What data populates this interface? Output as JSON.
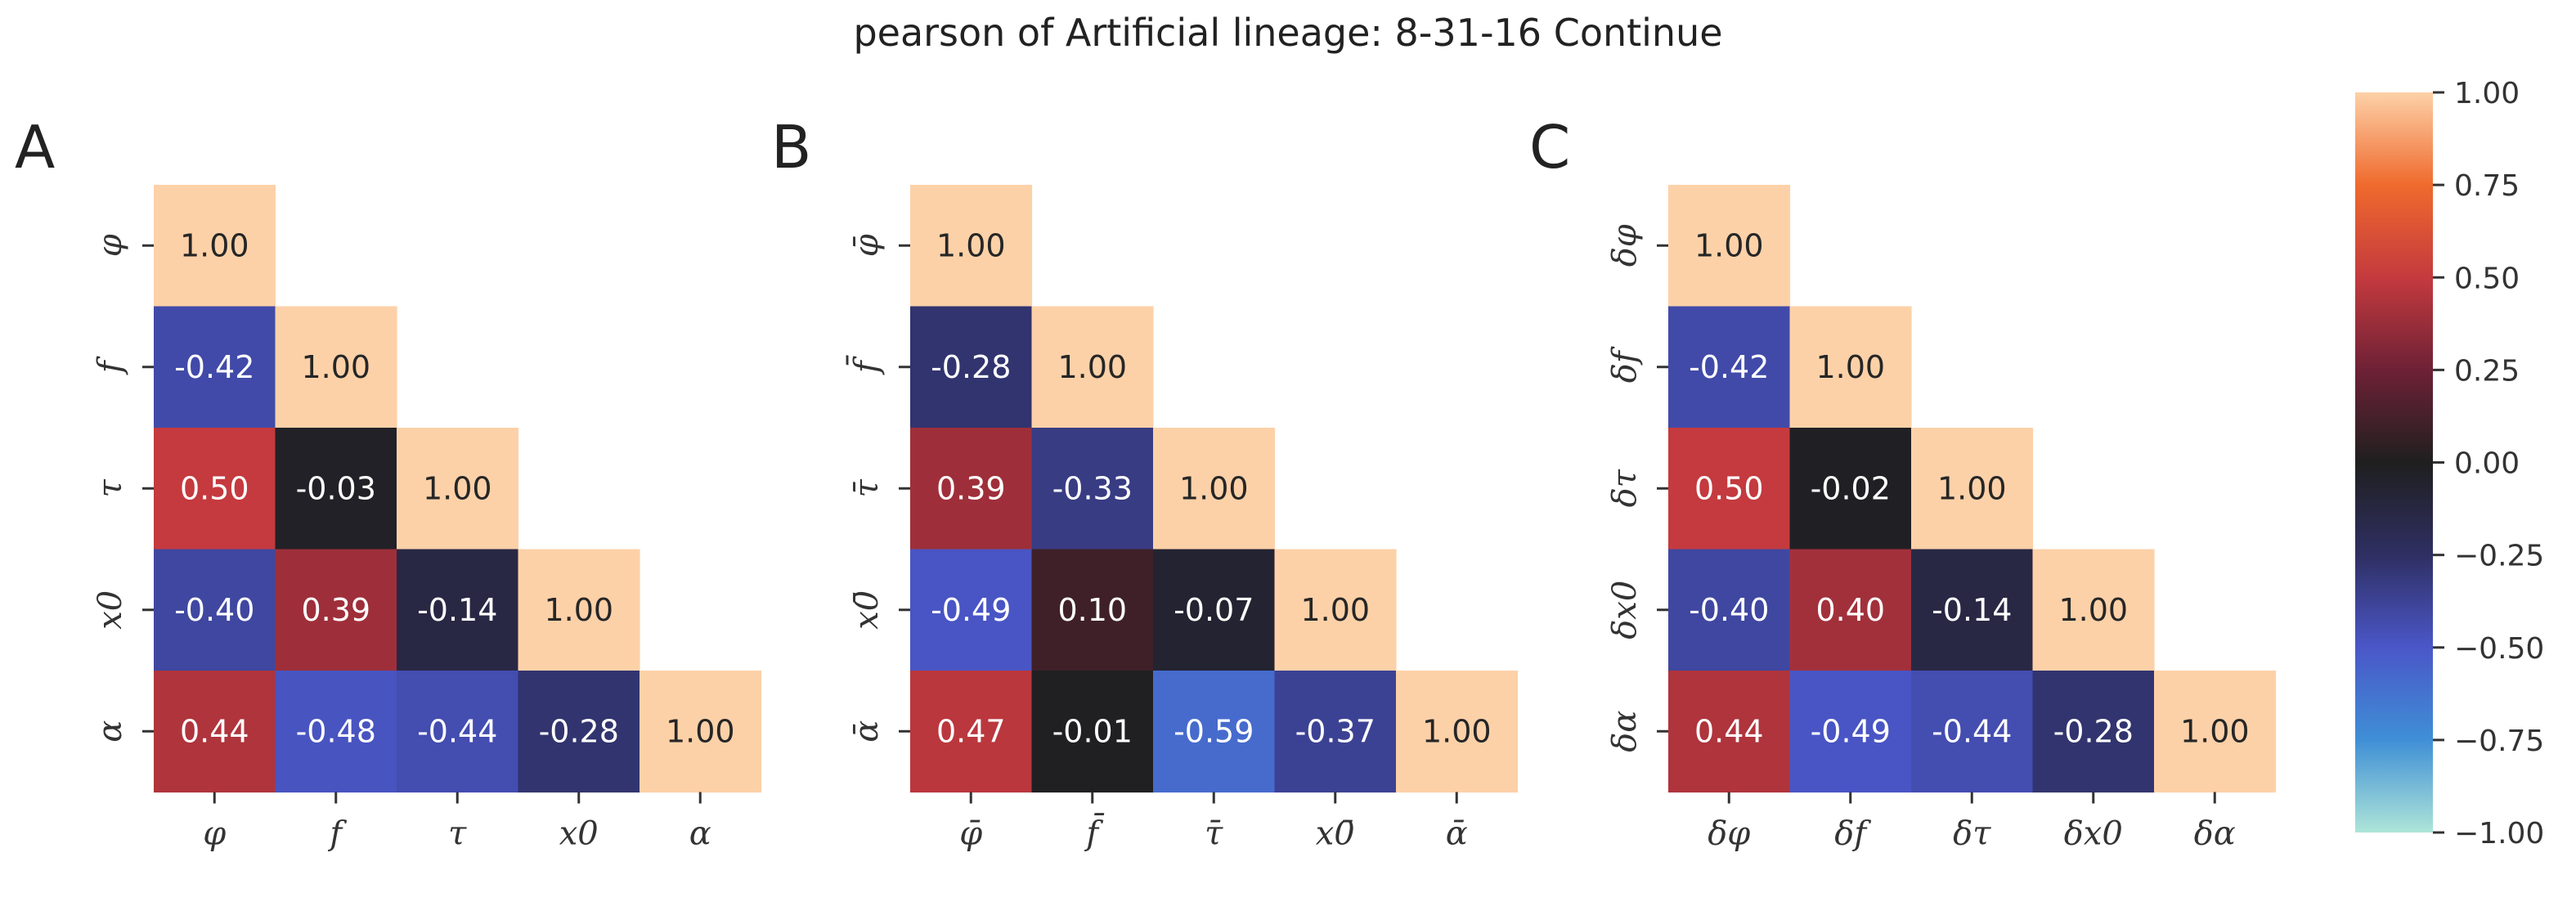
{
  "title": "pearson of Artificial lineage: 8-31-16 Continue",
  "colorbar": {
    "min": -1.0,
    "max": 1.0,
    "ticks": [
      "1.00",
      "0.75",
      "0.50",
      "0.25",
      "0.00",
      "−0.25",
      "−0.50",
      "−0.75",
      "−1.00"
    ],
    "tick_values": [
      1.0,
      0.75,
      0.5,
      0.25,
      0.0,
      -0.25,
      -0.5,
      -0.75,
      -1.0
    ],
    "colormap": "icefire",
    "stops": [
      {
        "v": -1.0,
        "color": "#aee5d8"
      },
      {
        "v": -0.75,
        "color": "#3f8fd6"
      },
      {
        "v": -0.5,
        "color": "#4a57c8"
      },
      {
        "v": -0.25,
        "color": "#2f2f63"
      },
      {
        "v": 0.0,
        "color": "#1f1f1f"
      },
      {
        "v": 0.25,
        "color": "#6e2136"
      },
      {
        "v": 0.5,
        "color": "#c43a3e"
      },
      {
        "v": 0.75,
        "color": "#ef6a2d"
      },
      {
        "v": 1.0,
        "color": "#fdd1a8"
      }
    ]
  },
  "chart_data": [
    {
      "type": "heatmap",
      "panel": "A",
      "labels": [
        "φ",
        "f",
        "τ",
        "x0",
        "α"
      ],
      "values": [
        [
          1.0
        ],
        [
          -0.42,
          1.0
        ],
        [
          0.5,
          -0.03,
          1.0
        ],
        [
          -0.4,
          0.39,
          -0.14,
          1.0
        ],
        [
          0.44,
          -0.48,
          -0.44,
          -0.28,
          1.0
        ]
      ]
    },
    {
      "type": "heatmap",
      "panel": "B",
      "labels": [
        "φ̄",
        "f̄",
        "τ̄",
        "x0̄",
        "ᾱ"
      ],
      "values": [
        [
          1.0
        ],
        [
          -0.28,
          1.0
        ],
        [
          0.39,
          -0.33,
          1.0
        ],
        [
          -0.49,
          0.1,
          -0.07,
          1.0
        ],
        [
          0.47,
          -0.01,
          -0.59,
          -0.37,
          1.0
        ]
      ]
    },
    {
      "type": "heatmap",
      "panel": "C",
      "labels": [
        "δφ",
        "δf",
        "δτ",
        "δx0",
        "δα"
      ],
      "values": [
        [
          1.0
        ],
        [
          -0.42,
          1.0
        ],
        [
          0.5,
          -0.02,
          1.0
        ],
        [
          -0.4,
          0.4,
          -0.14,
          1.0
        ],
        [
          0.44,
          -0.49,
          -0.44,
          -0.28,
          1.0
        ]
      ]
    }
  ]
}
